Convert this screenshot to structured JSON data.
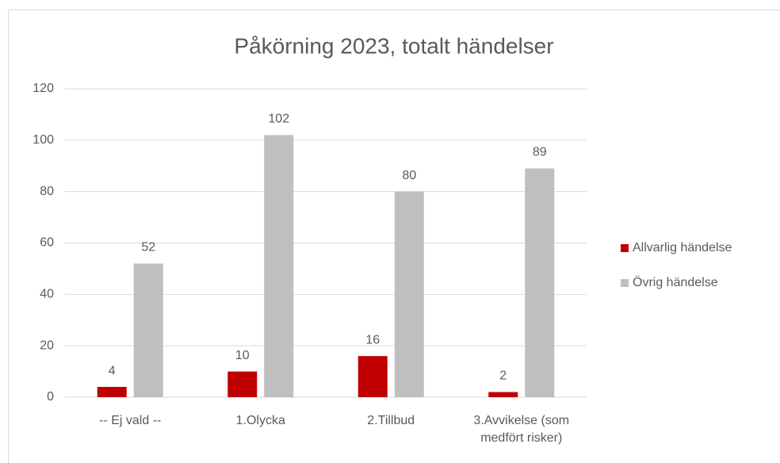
{
  "chart_data": {
    "type": "bar",
    "title": "Påkörning 2023, totalt händelser",
    "categories": [
      "-- Ej vald --",
      "1.Olycka",
      "2.Tillbud",
      "3.Avvikelse (som\nmedfört risker)"
    ],
    "series": [
      {
        "name": "Allvarlig händelse",
        "color": "#c00000",
        "values": [
          4,
          10,
          16,
          2
        ]
      },
      {
        "name": "Övrig händelse",
        "color": "#bfbfbf",
        "values": [
          52,
          102,
          80,
          89
        ]
      }
    ],
    "ylim": [
      0,
      120
    ],
    "yticks": [
      0,
      20,
      40,
      60,
      80,
      100,
      120
    ],
    "grid": true,
    "legend": "right"
  }
}
